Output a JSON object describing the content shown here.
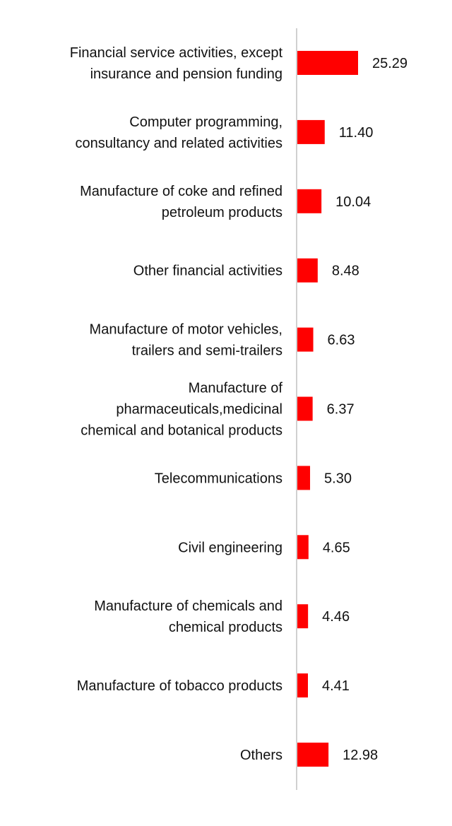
{
  "chart_data": {
    "type": "bar",
    "orientation": "horizontal",
    "title": "",
    "xlabel": "",
    "ylabel": "",
    "grid": false,
    "legend": "none",
    "bar_color": "#ff0000",
    "axis_color": "#d0d0d0",
    "categories": [
      [
        "Financial service activities, except",
        "insurance and pension funding"
      ],
      [
        "Computer programming,",
        "consultancy and related activities"
      ],
      [
        "Manufacture of coke and refined",
        "petroleum products"
      ],
      [
        "Other financial activities"
      ],
      [
        "Manufacture of motor vehicles,",
        "trailers and semi-trailers"
      ],
      [
        "Manufacture of",
        "pharmaceuticals,medicinal",
        "chemical and botanical products"
      ],
      [
        "Telecommunications"
      ],
      [
        "Civil engineering"
      ],
      [
        "Manufacture of chemicals and",
        "chemical products"
      ],
      [
        "Manufacture of tobacco products"
      ],
      [
        "Others"
      ]
    ],
    "values": [
      25.29,
      11.4,
      10.04,
      8.48,
      6.63,
      6.37,
      5.3,
      4.65,
      4.46,
      4.41,
      12.98
    ],
    "value_labels": [
      "25.29",
      "11.40",
      "10.04",
      "8.48",
      "6.63",
      "6.37",
      "5.30",
      "4.65",
      "4.46",
      "4.41",
      "12.98"
    ],
    "xlim": [
      0,
      25.29
    ]
  }
}
